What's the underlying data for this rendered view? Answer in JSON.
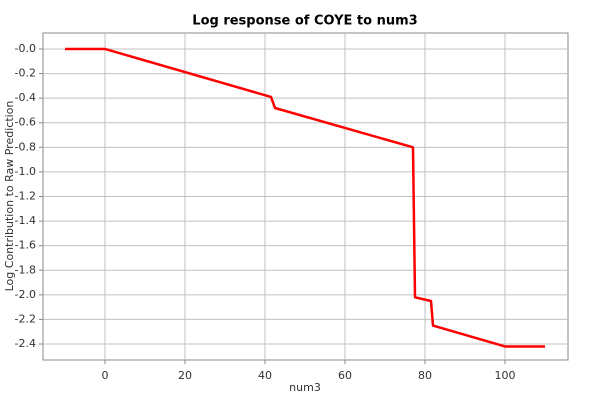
{
  "chart_data": {
    "type": "line",
    "title": "Log response of COYE to num3",
    "x_label": "num3",
    "y_label": "Log Contribution to Raw Prediction",
    "x": [
      -10,
      0,
      41.5,
      42.5,
      77,
      77.5,
      81.5,
      82,
      100,
      110
    ],
    "series": [
      {
        "color": "#ff0000",
        "values": [
          0,
          0,
          -0.39,
          -0.48,
          -0.8,
          -2.02,
          -2.05,
          -2.25,
          -2.42,
          -2.42
        ]
      }
    ],
    "xlim": [
      -15.5,
      115.75
    ],
    "ylim": [
      -2.53,
      0.13
    ],
    "xticks": [
      0,
      20,
      40,
      60,
      80,
      100
    ],
    "yticks": [
      {
        "value": 0,
        "label": "-0.0"
      },
      -0.2,
      -0.4,
      -0.6,
      -0.8,
      {
        "value": -1,
        "label": "-1.0"
      },
      -1.2,
      -1.4,
      -1.6,
      -1.8,
      {
        "value": -2,
        "label": "-2.0"
      },
      -2.2,
      -2.4
    ],
    "grid": true
  }
}
